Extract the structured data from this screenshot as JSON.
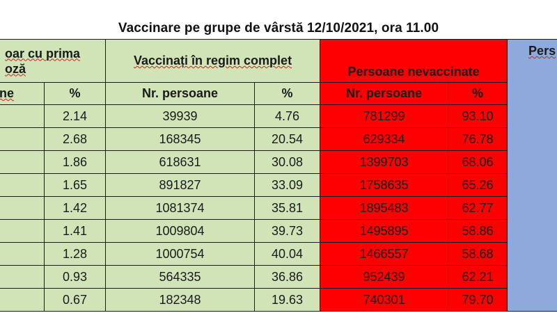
{
  "title": "Vaccinare pe grupe de vârstă 12/10/2021, ora 11.00",
  "headers": {
    "group1_line1": "oar cu prima",
    "group1_line2": "oză",
    "group2": "Vaccinați în regim complet",
    "group3": "Persoane nevaccinate",
    "group4": "Pers",
    "sub_g1_nr": "ane",
    "sub_g1_pct": "%",
    "sub_g2_nr": "Nr. persoane",
    "sub_g2_pct": "%",
    "sub_g3_nr": "Nr. persoane",
    "sub_g3_pct": "%"
  },
  "rows": [
    {
      "first_pct": "2.14",
      "complete_nr": "39939",
      "complete_pct": "4.76",
      "unvacc_nr": "781299",
      "unvacc_pct": "93.10"
    },
    {
      "first_pct": "2.68",
      "complete_nr": "168345",
      "complete_pct": "20.54",
      "unvacc_nr": "629334",
      "unvacc_pct": "76.78"
    },
    {
      "first_pct": "1.86",
      "complete_nr": "618631",
      "complete_pct": "30.08",
      "unvacc_nr": "1399703",
      "unvacc_pct": "68.06"
    },
    {
      "first_pct": "1.65",
      "complete_nr": "891827",
      "complete_pct": "33.09",
      "unvacc_nr": "1758635",
      "unvacc_pct": "65.26"
    },
    {
      "first_pct": "1.42",
      "complete_nr": "1081374",
      "complete_pct": "35.81",
      "unvacc_nr": "1895483",
      "unvacc_pct": "62.77"
    },
    {
      "first_pct": "1.41",
      "complete_nr": "1009804",
      "complete_pct": "39.73",
      "unvacc_nr": "1495895",
      "unvacc_pct": "58.86"
    },
    {
      "first_pct": "1.28",
      "complete_nr": "1000754",
      "complete_pct": "40.04",
      "unvacc_nr": "1466557",
      "unvacc_pct": "58.68"
    },
    {
      "first_pct": "0.93",
      "complete_nr": "564335",
      "complete_pct": "36.86",
      "unvacc_nr": "952439",
      "unvacc_pct": "62.21"
    },
    {
      "first_pct": "0.67",
      "complete_nr": "182348",
      "complete_pct": "19.63",
      "unvacc_nr": "740301",
      "unvacc_pct": "79.70"
    }
  ],
  "colors": {
    "first_dose_bg": "#d0e4b8",
    "complete_bg": "#d0e4b8",
    "unvaccinated_bg": "#ff0000",
    "other_bg": "#8ea9db"
  }
}
